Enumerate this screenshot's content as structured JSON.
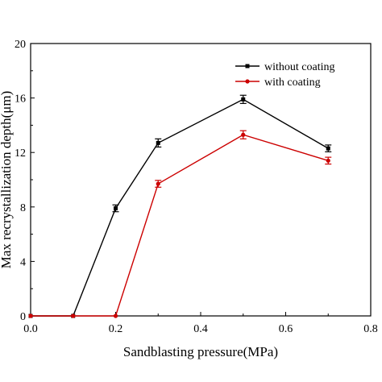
{
  "chart_data": {
    "type": "line",
    "xlabel": "Sandblasting pressure(MPa)",
    "ylabel": "Max recrystallization depth(μm)",
    "xlim": [
      0.0,
      0.8
    ],
    "ylim": [
      0,
      20
    ],
    "xticks": [
      "0.0",
      "0.2",
      "0.4",
      "0.6",
      "0.8"
    ],
    "yticks": [
      "0",
      "4",
      "8",
      "12",
      "16",
      "20"
    ],
    "grid": false,
    "legend_position": "top-right",
    "series": [
      {
        "name": "without coating",
        "color": "#000000",
        "marker": "square",
        "x": [
          0.0,
          0.1,
          0.2,
          0.3,
          0.5,
          0.7
        ],
        "y": [
          0,
          0,
          7.9,
          12.7,
          15.9,
          12.3
        ],
        "error": [
          0,
          0,
          0.25,
          0.3,
          0.3,
          0.25
        ]
      },
      {
        "name": "with coating",
        "color": "#cc0000",
        "marker": "circle",
        "x": [
          0.0,
          0.1,
          0.2,
          0.3,
          0.5,
          0.7
        ],
        "y": [
          0,
          0,
          0,
          9.7,
          13.3,
          11.4
        ],
        "error": [
          0,
          0,
          0,
          0.25,
          0.3,
          0.25
        ]
      }
    ]
  }
}
